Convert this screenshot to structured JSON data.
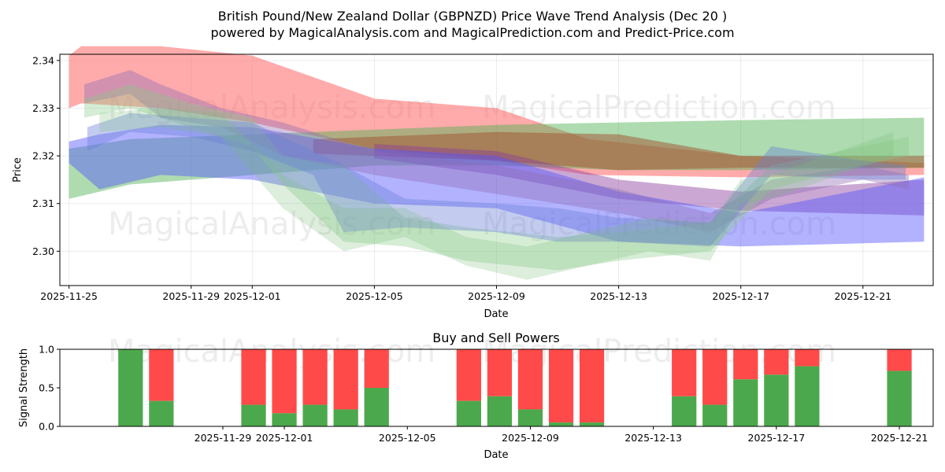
{
  "chart_data": [
    {
      "type": "area",
      "title": "British Pound/New Zealand Dollar (GBPNZD) Price Wave Trend Analysis (Dec 20 )",
      "subtitle": "powered by MagicalAnalysis.com and MagicalPrediction.com and Predict-Price.com",
      "xlabel": "Date",
      "ylabel": "Price",
      "x_range_days": [
        -0.3,
        28.3
      ],
      "x_origin_date": "2025-11-25",
      "ylim": [
        2.2928,
        2.3413
      ],
      "grid": true,
      "x_ticks": [
        {
          "day": 0,
          "label": "2025-11-25"
        },
        {
          "day": 4,
          "label": "2025-11-29"
        },
        {
          "day": 6,
          "label": "2025-12-01"
        },
        {
          "day": 10,
          "label": "2025-12-05"
        },
        {
          "day": 14,
          "label": "2025-12-09"
        },
        {
          "day": 18,
          "label": "2025-12-13"
        },
        {
          "day": 22,
          "label": "2025-12-17"
        },
        {
          "day": 26,
          "label": "2025-12-21"
        }
      ],
      "y_ticks": [
        {
          "value": 2.3,
          "label": "2.30"
        },
        {
          "value": 2.31,
          "label": "2.31"
        },
        {
          "value": 2.32,
          "label": "2.32"
        },
        {
          "value": 2.33,
          "label": "2.33"
        },
        {
          "value": 2.34,
          "label": "2.34"
        }
      ],
      "watermarks": [
        "MagicalAnalysis.com",
        "MagicalPrediction.com",
        "MagicalAnalysis.com",
        "MagicalPrediction.com"
      ],
      "bands": [
        {
          "color": "#ff6666",
          "opacity": 0.55,
          "x": [
            0,
            0.4,
            3,
            6,
            10,
            14,
            17,
            22,
            28
          ],
          "upper": [
            2.341,
            2.343,
            2.343,
            2.341,
            2.332,
            2.33,
            2.3235,
            2.32,
            2.3185
          ],
          "lower": [
            2.33,
            2.331,
            2.33,
            2.327,
            2.3215,
            2.319,
            2.316,
            2.3155,
            2.316
          ]
        },
        {
          "color": "#4caf50",
          "opacity": 0.45,
          "x": [
            0,
            2,
            6,
            10,
            14,
            18,
            22,
            28
          ],
          "upper": [
            2.3215,
            2.3235,
            2.3245,
            2.3255,
            2.3265,
            2.327,
            2.3275,
            2.328
          ],
          "lower": [
            2.311,
            2.314,
            2.316,
            2.318,
            2.318,
            2.317,
            2.317,
            2.3175
          ]
        },
        {
          "color": "#a0522d",
          "opacity": 0.5,
          "x": [
            8,
            14,
            18,
            22,
            28
          ],
          "upper": [
            2.3235,
            2.325,
            2.3245,
            2.32,
            2.32
          ],
          "lower": [
            2.3205,
            2.319,
            2.317,
            2.3175,
            2.3175
          ]
        },
        {
          "color": "#8b3f9e",
          "opacity": 0.45,
          "x": [
            10,
            14,
            18,
            22,
            28
          ],
          "upper": [
            2.3225,
            2.321,
            2.315,
            2.3125,
            2.315
          ],
          "lower": [
            2.3195,
            2.316,
            2.311,
            2.3085,
            2.3075
          ]
        },
        {
          "color": "#5555ff",
          "opacity": 0.45,
          "x": [
            0,
            1,
            3,
            6,
            10,
            14,
            18,
            22,
            28
          ],
          "upper": [
            2.323,
            2.3245,
            2.3265,
            2.326,
            2.3215,
            2.32,
            2.3125,
            2.308,
            2.3155
          ],
          "lower": [
            2.3185,
            2.313,
            2.316,
            2.315,
            2.31,
            2.309,
            2.302,
            2.301,
            2.302
          ]
        },
        {
          "color": "#8e6cb5",
          "opacity": 0.4,
          "x": [
            0.5,
            2,
            3,
            5,
            7,
            10,
            14,
            18,
            21,
            23,
            26,
            27.5
          ],
          "upper": [
            2.335,
            2.338,
            2.335,
            2.33,
            2.327,
            2.321,
            2.318,
            2.313,
            2.308,
            2.315,
            2.318,
            2.316
          ],
          "lower": [
            2.331,
            2.333,
            2.328,
            2.326,
            2.32,
            2.316,
            2.312,
            2.308,
            2.304,
            2.311,
            2.315,
            2.313
          ]
        },
        {
          "color": "#88cc88",
          "opacity": 0.35,
          "x": [
            0.5,
            2,
            4,
            6,
            7,
            9,
            11,
            13,
            16,
            18,
            21,
            23,
            26,
            27.5
          ],
          "upper": [
            2.332,
            2.335,
            2.331,
            2.328,
            2.32,
            2.318,
            2.307,
            2.305,
            2.303,
            2.304,
            2.306,
            2.318,
            2.322,
            2.324
          ],
          "lower": [
            2.328,
            2.33,
            2.326,
            2.322,
            2.314,
            2.302,
            2.301,
            2.298,
            2.296,
            2.298,
            2.3,
            2.313,
            2.318,
            2.32
          ]
        },
        {
          "color": "#6a7fd8",
          "opacity": 0.4,
          "x": [
            0.6,
            2,
            4,
            6,
            8,
            9,
            11,
            14,
            16,
            18,
            21,
            23,
            26,
            27.4
          ],
          "upper": [
            2.326,
            2.329,
            2.328,
            2.327,
            2.321,
            2.318,
            2.311,
            2.31,
            2.309,
            2.307,
            2.306,
            2.322,
            2.319,
            2.318
          ],
          "lower": [
            2.321,
            2.325,
            2.324,
            2.321,
            2.316,
            2.304,
            2.305,
            2.304,
            2.302,
            2.302,
            2.301,
            2.316,
            2.315,
            2.315
          ]
        },
        {
          "color": "#77bb77",
          "opacity": 0.25,
          "x": [
            1,
            3,
            5,
            7,
            9,
            11,
            13,
            15,
            17,
            19,
            21,
            22,
            23,
            27
          ],
          "upper": [
            2.329,
            2.33,
            2.329,
            2.316,
            2.309,
            2.309,
            2.303,
            2.301,
            2.304,
            2.307,
            2.306,
            2.315,
            2.316,
            2.325
          ],
          "lower": [
            2.325,
            2.326,
            2.324,
            2.309,
            2.3,
            2.303,
            2.297,
            2.294,
            2.297,
            2.3,
            2.298,
            2.31,
            2.311,
            2.32
          ]
        }
      ]
    },
    {
      "type": "bar",
      "title": "Buy and Sell Powers",
      "xlabel": "Date",
      "ylabel": "Signal Strength",
      "ylim": [
        0,
        1
      ],
      "y_ticks": [
        {
          "value": 0.0,
          "label": "0.0"
        },
        {
          "value": 0.5,
          "label": "0.5"
        },
        {
          "value": 1.0,
          "label": "1.0"
        }
      ],
      "x_range_days": [
        -1.3,
        27.1
      ],
      "x_ticks": [
        {
          "day": 4,
          "label": "2025-11-29"
        },
        {
          "day": 6,
          "label": "2025-12-01"
        },
        {
          "day": 10,
          "label": "2025-12-05"
        },
        {
          "day": 14,
          "label": "2025-12-09"
        },
        {
          "day": 18,
          "label": "2025-12-13"
        },
        {
          "day": 22,
          "label": "2025-12-17"
        },
        {
          "day": 26,
          "label": "2025-12-21"
        }
      ],
      "series": [
        {
          "name": "Buy",
          "color": "#4ca84c"
        },
        {
          "name": "Sell",
          "color": "#ff4a4a"
        }
      ],
      "bars": [
        {
          "day": 1,
          "buy": 1.0
        },
        {
          "day": 2,
          "buy": 0.33
        },
        {
          "day": 5,
          "buy": 0.28
        },
        {
          "day": 6,
          "buy": 0.17
        },
        {
          "day": 7,
          "buy": 0.28
        },
        {
          "day": 8,
          "buy": 0.22
        },
        {
          "day": 9,
          "buy": 0.5
        },
        {
          "day": 12,
          "buy": 0.33
        },
        {
          "day": 13,
          "buy": 0.39
        },
        {
          "day": 14,
          "buy": 0.22
        },
        {
          "day": 15,
          "buy": 0.05
        },
        {
          "day": 16,
          "buy": 0.05
        },
        {
          "day": 19,
          "buy": 0.39
        },
        {
          "day": 20,
          "buy": 0.28
        },
        {
          "day": 21,
          "buy": 0.61
        },
        {
          "day": 22,
          "buy": 0.67
        },
        {
          "day": 23,
          "buy": 0.78
        },
        {
          "day": 26,
          "buy": 0.72
        }
      ],
      "watermarks": [
        "MagicalAnalysis.com",
        "MagicalPrediction.com"
      ]
    }
  ]
}
